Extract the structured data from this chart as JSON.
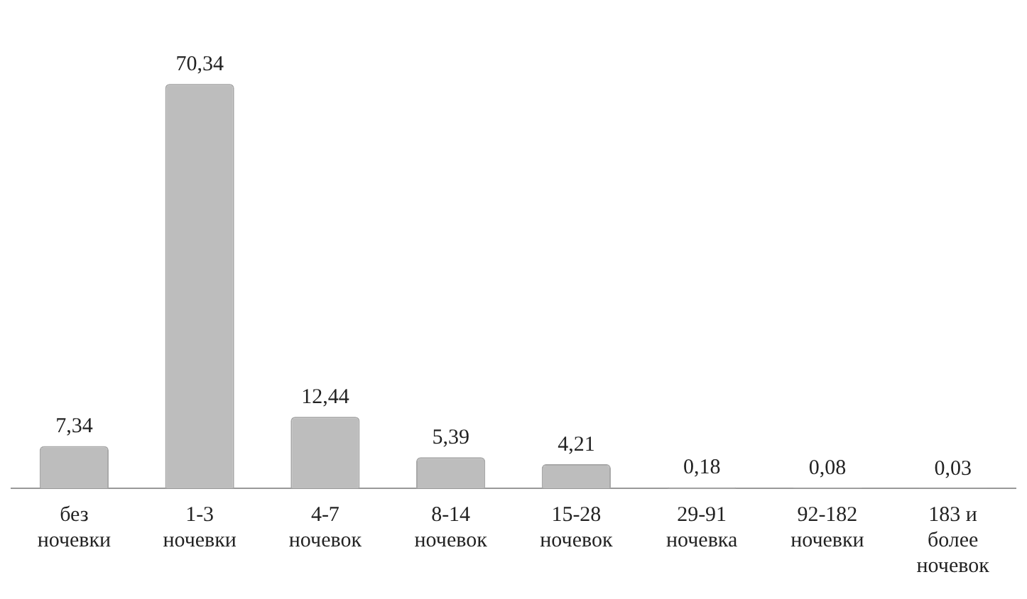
{
  "chart_data": {
    "type": "bar",
    "categories": [
      "без\nночевки",
      "1-3\nночевки",
      "4-7\nночевок",
      "8-14\nночевок",
      "15-28\nночевок",
      "29-91\nночевка",
      "92-182\nночевки",
      "183 и\nболее\nночевок"
    ],
    "values": [
      7.34,
      70.34,
      12.44,
      5.39,
      4.21,
      0.18,
      0.08,
      0.03
    ],
    "value_labels": [
      "7,34",
      "70,34",
      "12,44",
      "5,39",
      "4,21",
      "0,18",
      "0,08",
      "0,03"
    ],
    "color": "#bdbdbd",
    "grid": false,
    "legend": false
  }
}
